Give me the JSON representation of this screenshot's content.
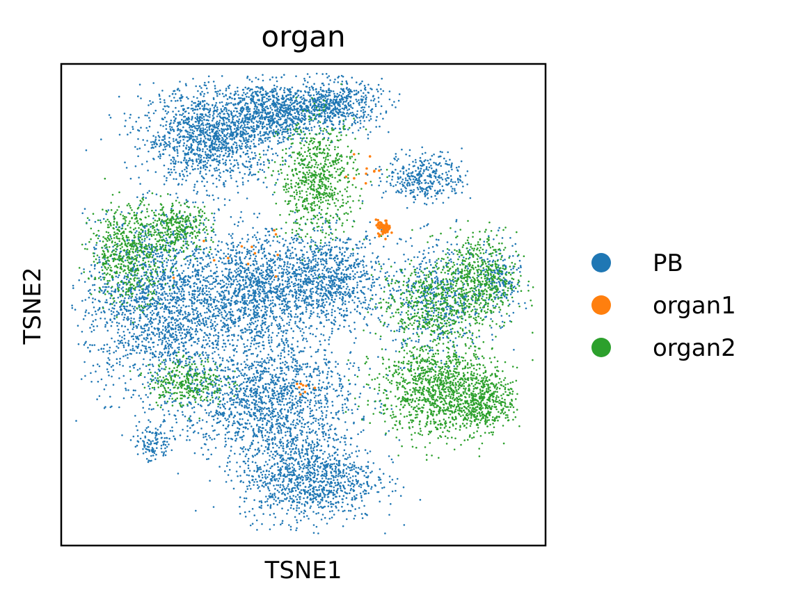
{
  "chart_data": {
    "type": "scatter",
    "title": "organ",
    "xlabel": "TSNE1",
    "ylabel": "TSNE2",
    "xlim": [
      -1.0,
      1.0
    ],
    "ylim": [
      -1.0,
      1.0
    ],
    "grid": false,
    "ticks": false,
    "legend_position": "right",
    "series": [
      {
        "name": "PB",
        "color": "#1f77b4"
      },
      {
        "name": "organ1",
        "color": "#ff7f0e"
      },
      {
        "name": "organ2",
        "color": "#2ca02c"
      }
    ],
    "clusters": [
      {
        "series": "PB",
        "cx": -0.38,
        "cy": 0.7,
        "sx": 0.14,
        "sy": 0.1,
        "n": 1400
      },
      {
        "series": "PB",
        "cx": -0.12,
        "cy": 0.8,
        "sx": 0.1,
        "sy": 0.06,
        "n": 700
      },
      {
        "series": "PB",
        "cx": 0.12,
        "cy": 0.83,
        "sx": 0.1,
        "sy": 0.05,
        "n": 600
      },
      {
        "series": "PB",
        "cx": 0.5,
        "cy": 0.53,
        "sx": 0.08,
        "sy": 0.05,
        "n": 350
      },
      {
        "series": "PB",
        "cx": -0.58,
        "cy": 0.0,
        "sx": 0.16,
        "sy": 0.18,
        "n": 2000
      },
      {
        "series": "PB",
        "cx": -0.2,
        "cy": 0.05,
        "sx": 0.1,
        "sy": 0.12,
        "n": 1000
      },
      {
        "series": "PB",
        "cx": 0.1,
        "cy": 0.1,
        "sx": 0.12,
        "sy": 0.1,
        "n": 1000
      },
      {
        "series": "PB",
        "cx": -0.15,
        "cy": -0.4,
        "sx": 0.18,
        "sy": 0.12,
        "n": 1500
      },
      {
        "series": "PB",
        "cx": 0.02,
        "cy": -0.72,
        "sx": 0.14,
        "sy": 0.09,
        "n": 1100
      },
      {
        "series": "PB",
        "cx": 0.55,
        "cy": 0.02,
        "sx": 0.1,
        "sy": 0.12,
        "n": 500
      },
      {
        "series": "PB",
        "cx": -0.62,
        "cy": -0.58,
        "sx": 0.04,
        "sy": 0.04,
        "n": 120
      },
      {
        "series": "PB",
        "cx": 0.8,
        "cy": 0.1,
        "sx": 0.05,
        "sy": 0.08,
        "n": 200
      },
      {
        "series": "organ2",
        "cx": -0.72,
        "cy": 0.22,
        "sx": 0.08,
        "sy": 0.1,
        "n": 600
      },
      {
        "series": "organ2",
        "cx": -0.52,
        "cy": 0.32,
        "sx": 0.07,
        "sy": 0.05,
        "n": 300
      },
      {
        "series": "organ2",
        "cx": 0.06,
        "cy": 0.52,
        "sx": 0.08,
        "sy": 0.12,
        "n": 700
      },
      {
        "series": "organ2",
        "cx": 0.55,
        "cy": -0.35,
        "sx": 0.12,
        "sy": 0.1,
        "n": 1100
      },
      {
        "series": "organ2",
        "cx": 0.75,
        "cy": -0.4,
        "sx": 0.06,
        "sy": 0.06,
        "n": 400
      },
      {
        "series": "organ2",
        "cx": 0.72,
        "cy": 0.1,
        "sx": 0.08,
        "sy": 0.1,
        "n": 600
      },
      {
        "series": "organ2",
        "cx": 0.5,
        "cy": 0.0,
        "sx": 0.09,
        "sy": 0.08,
        "n": 400
      },
      {
        "series": "organ2",
        "cx": -0.48,
        "cy": -0.32,
        "sx": 0.08,
        "sy": 0.05,
        "n": 300
      },
      {
        "series": "organ1",
        "cx": 0.33,
        "cy": 0.32,
        "sx": 0.015,
        "sy": 0.015,
        "n": 60
      },
      {
        "series": "organ1",
        "cx": -0.25,
        "cy": 0.2,
        "sx": 0.1,
        "sy": 0.1,
        "n": 12
      },
      {
        "series": "organ1",
        "cx": 0.0,
        "cy": -0.35,
        "sx": 0.02,
        "sy": 0.02,
        "n": 8
      },
      {
        "series": "organ1",
        "cx": 0.25,
        "cy": 0.55,
        "sx": 0.04,
        "sy": 0.04,
        "n": 10
      }
    ]
  }
}
